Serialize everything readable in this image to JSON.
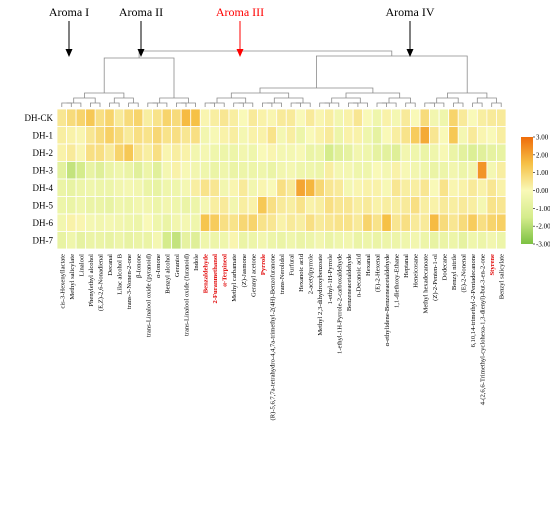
{
  "chart_data": {
    "type": "heatmap",
    "title": "",
    "groups": [
      {
        "label": "Aroma I",
        "color": "#000000"
      },
      {
        "label": "Aroma II",
        "color": "#000000"
      },
      {
        "label": "Aroma III",
        "color": "#ff0000"
      },
      {
        "label": "Aroma IV",
        "color": "#000000"
      }
    ],
    "rows": [
      "DH-CK",
      "DH-1",
      "DH-2",
      "DH-3",
      "DH-4",
      "DH-5",
      "DH-6",
      "DH-7"
    ],
    "columns": [
      {
        "label": "cis-3-Hexenyllactate",
        "highlight": false
      },
      {
        "label": "Methyl salicylate",
        "highlight": false
      },
      {
        "label": "Linalool",
        "highlight": false
      },
      {
        "label": "Phenylethyl alcohol",
        "highlight": false
      },
      {
        "label": "(E,Z)-2,6-Nonadienal",
        "highlight": false
      },
      {
        "label": "Decanal",
        "highlight": false
      },
      {
        "label": "Lilac alcohol B",
        "highlight": false
      },
      {
        "label": "trans-3-Nonen-2-one",
        "highlight": false
      },
      {
        "label": "β-Ionone",
        "highlight": false
      },
      {
        "label": "trans-Linalool oxide (pyranoid)",
        "highlight": false
      },
      {
        "label": "α-Ionone",
        "highlight": false
      },
      {
        "label": "Benzyl alcohol",
        "highlight": false
      },
      {
        "label": "Geraniol",
        "highlight": false
      },
      {
        "label": "trans-Linalool oxide (furanoid)",
        "highlight": false
      },
      {
        "label": "Indole",
        "highlight": false
      },
      {
        "label": "Benzaldehyde",
        "highlight": true
      },
      {
        "label": "2-Furanmethanol",
        "highlight": true
      },
      {
        "label": "α-Terpineol",
        "highlight": true
      },
      {
        "label": "Methyl carbamate",
        "highlight": false
      },
      {
        "label": "(Z)-Jasmone",
        "highlight": false
      },
      {
        "label": "Geranyl acetone",
        "highlight": false
      },
      {
        "label": "Pyrrole",
        "highlight": true
      },
      {
        "label": "(R)-5,6,7,7a-tetrahydro-4,4,7a-trimethyl-2(4H)-Benzofuranone",
        "highlight": false
      },
      {
        "label": "trans-Nerolidol",
        "highlight": false
      },
      {
        "label": "Furfural",
        "highlight": false
      },
      {
        "label": "Hexanoic acid",
        "highlight": false
      },
      {
        "label": "2-acetylpyrrole",
        "highlight": false
      },
      {
        "label": "Methyl 2,3-dihydroxybenzoate",
        "highlight": false
      },
      {
        "label": "1-ethyl-1H-Pyrrole",
        "highlight": false
      },
      {
        "label": "1-ethyl-1H-Pyrrole-2-carboxaldehyde",
        "highlight": false
      },
      {
        "label": "Benzeneacetaldehyde",
        "highlight": false
      },
      {
        "label": "n-Decanoic acid",
        "highlight": false
      },
      {
        "label": "Hexanal",
        "highlight": false
      },
      {
        "label": "(E)-2-Hexenal",
        "highlight": false
      },
      {
        "label": "α-ethylidene-Benzeneacetaldehyde",
        "highlight": false
      },
      {
        "label": "1,1-diethoxy-Ethane",
        "highlight": false
      },
      {
        "label": "Heptanal",
        "highlight": false
      },
      {
        "label": "Heneicosane",
        "highlight": false
      },
      {
        "label": "Methyl hexadecanoate",
        "highlight": false
      },
      {
        "label": "(Z)-2-Penten-1-ol",
        "highlight": false
      },
      {
        "label": "Dodecane",
        "highlight": false
      },
      {
        "label": "Benzyl nitrile",
        "highlight": false
      },
      {
        "label": "(E)-2-Nonenal",
        "highlight": false
      },
      {
        "label": "6,10,14-trimethyl-2-Pentadecanone",
        "highlight": false
      },
      {
        "label": "4-(2,6,6-Trimethyl-cyclohexa-1,3-dienyl)-but-3-en-2-one",
        "highlight": false
      },
      {
        "label": "Styrene",
        "highlight": true
      },
      {
        "label": "Benzyl salicylate",
        "highlight": false
      }
    ],
    "values": [
      [
        0.5,
        0.8,
        1.0,
        1.3,
        0.7,
        1.0,
        0.4,
        0.8,
        1.0,
        0.3,
        0.6,
        1.0,
        0.8,
        1.6,
        1.5,
        0.1,
        0.3,
        0.5,
        0.3,
        0.0,
        0.4,
        0.2,
        0.1,
        0.4,
        0.4,
        0.0,
        0.4,
        0.1,
        0.3,
        -0.3,
        0.2,
        0.5,
        0.0,
        -0.4,
        0.2,
        -0.2,
        0.4,
        0.0,
        0.8,
        -0.3,
        -0.4,
        1.0,
        0.4,
        0.0,
        0.3,
        0.4,
        0.4
      ],
      [
        0.3,
        0.2,
        0.1,
        0.5,
        0.8,
        1.1,
        0.8,
        0.4,
        0.7,
        0.6,
        0.9,
        0.6,
        0.7,
        0.5,
        0.7,
        -0.3,
        -0.1,
        0.2,
        0.3,
        -0.2,
        0.2,
        0.2,
        0.6,
        -0.2,
        0.3,
        -0.5,
        0.0,
        0.2,
        0.4,
        -0.5,
        0.2,
        0.2,
        -0.4,
        -0.8,
        0.0,
        0.3,
        0.6,
        1.2,
        1.9,
        0.5,
        0.0,
        1.3,
        -0.2,
        0.4,
        0.1,
        0.0,
        0.3
      ],
      [
        0.2,
        0.4,
        0.1,
        0.7,
        0.7,
        0.4,
        1.0,
        1.3,
        0.5,
        0.3,
        0.7,
        0.1,
        0.3,
        0.2,
        -0.3,
        -0.2,
        -0.4,
        -0.5,
        -0.5,
        -0.3,
        -0.4,
        0.0,
        0.1,
        -0.2,
        -0.2,
        -0.1,
        -0.6,
        -0.5,
        -1.5,
        -1.0,
        -0.8,
        -0.3,
        -0.4,
        -0.8,
        -0.9,
        -1.1,
        -0.3,
        -0.4,
        -0.6,
        -0.4,
        -0.1,
        -0.6,
        -0.9,
        -1.2,
        -1.0,
        -0.8,
        -0.7
      ],
      [
        -0.9,
        -1.8,
        -1.5,
        -0.7,
        -1.1,
        -0.6,
        -0.4,
        -0.6,
        -1.0,
        -0.5,
        -1.0,
        -0.2,
        0.2,
        -0.1,
        -0.3,
        -0.4,
        -0.6,
        -0.4,
        -0.6,
        -0.5,
        -0.5,
        -0.4,
        -0.6,
        -0.3,
        -0.2,
        -0.4,
        -0.4,
        -0.5,
        0.3,
        -0.2,
        -0.2,
        -0.4,
        -0.4,
        0.0,
        -0.2,
        0.2,
        -0.1,
        -0.3,
        -0.4,
        -0.6,
        -0.5,
        -0.3,
        -0.5,
        -0.3,
        2.3,
        -0.2,
        0.3
      ],
      [
        -0.6,
        -0.7,
        -0.5,
        -0.4,
        -0.5,
        -0.5,
        -0.3,
        -0.2,
        -0.3,
        -0.6,
        -0.7,
        -0.4,
        -0.4,
        -0.2,
        0.3,
        0.6,
        0.5,
        -0.3,
        0.1,
        0.4,
        -0.3,
        0.1,
        0.0,
        0.7,
        0.4,
        2.0,
        1.7,
        0.9,
        0.5,
        0.4,
        -0.2,
        0.1,
        0.2,
        0.2,
        -0.1,
        0.5,
        0.3,
        0.3,
        0.5,
        0.0,
        0.6,
        0.1,
        0.2,
        0.4,
        0.2,
        0.5,
        0.2
      ],
      [
        -0.5,
        -0.6,
        -0.4,
        -0.6,
        -0.6,
        -0.7,
        -0.4,
        -0.5,
        -0.3,
        -0.3,
        -0.5,
        -0.3,
        -0.4,
        -0.6,
        -0.5,
        -0.2,
        0.3,
        0.4,
        -0.3,
        0.3,
        0.2,
        1.3,
        0.7,
        0.4,
        0.3,
        0.6,
        0.2,
        0.3,
        0.7,
        0.5,
        0.5,
        0.3,
        0.4,
        0.2,
        0.3,
        0.3,
        0.4,
        0.7,
        0.3,
        0.2,
        0.4,
        0.3,
        0.4,
        0.3,
        -0.2,
        0.6,
        0.5
      ],
      [
        -0.3,
        0.2,
        0.1,
        -0.2,
        -0.3,
        -0.2,
        -0.3,
        -0.4,
        -0.5,
        0.0,
        -0.4,
        -0.6,
        -0.3,
        -0.2,
        -0.4,
        1.4,
        1.2,
        0.7,
        0.6,
        0.9,
        1.0,
        0.6,
        0.5,
        0.2,
        0.4,
        0.3,
        0.7,
        0.4,
        0.5,
        0.6,
        0.6,
        0.4,
        1.0,
        0.6,
        1.5,
        0.5,
        0.7,
        0.4,
        0.4,
        1.6,
        0.8,
        0.5,
        0.8,
        1.2,
        0.7,
        1.0,
        1.1
      ],
      [
        -0.7,
        -0.4,
        -0.8,
        -0.6,
        -0.6,
        -0.7,
        -0.5,
        -0.7,
        -0.6,
        -0.6,
        -0.2,
        -1.5,
        -1.8,
        -0.8,
        -1.1,
        -0.4,
        -0.5,
        -0.4,
        0.1,
        -0.6,
        -0.5,
        -0.3,
        -0.5,
        -0.6,
        -0.4,
        -0.6,
        -0.5,
        -0.3,
        -0.6,
        -0.4,
        -0.3,
        -0.6,
        -0.5,
        -0.6,
        -0.5,
        -0.5,
        -0.4,
        -0.3,
        -0.5,
        -0.7,
        -0.6,
        -0.5,
        -0.8,
        -0.4,
        -0.5,
        -0.3,
        -0.5
      ]
    ],
    "colorbar": {
      "min": -3.0,
      "max": 3.0,
      "ticks": [
        "3.00",
        "2.00",
        "1.00",
        "0.00",
        "-1.00",
        "-2.00",
        "-3.00"
      ],
      "stops": [
        "#7cc142",
        "#d5ec8c",
        "#f9f9b8",
        "#f6c146",
        "#ef6c0a"
      ]
    },
    "dendrogram_group_columns": [
      [
        0,
        8
      ],
      [
        9,
        14
      ],
      [
        15,
        37
      ],
      [
        38,
        46
      ]
    ]
  }
}
